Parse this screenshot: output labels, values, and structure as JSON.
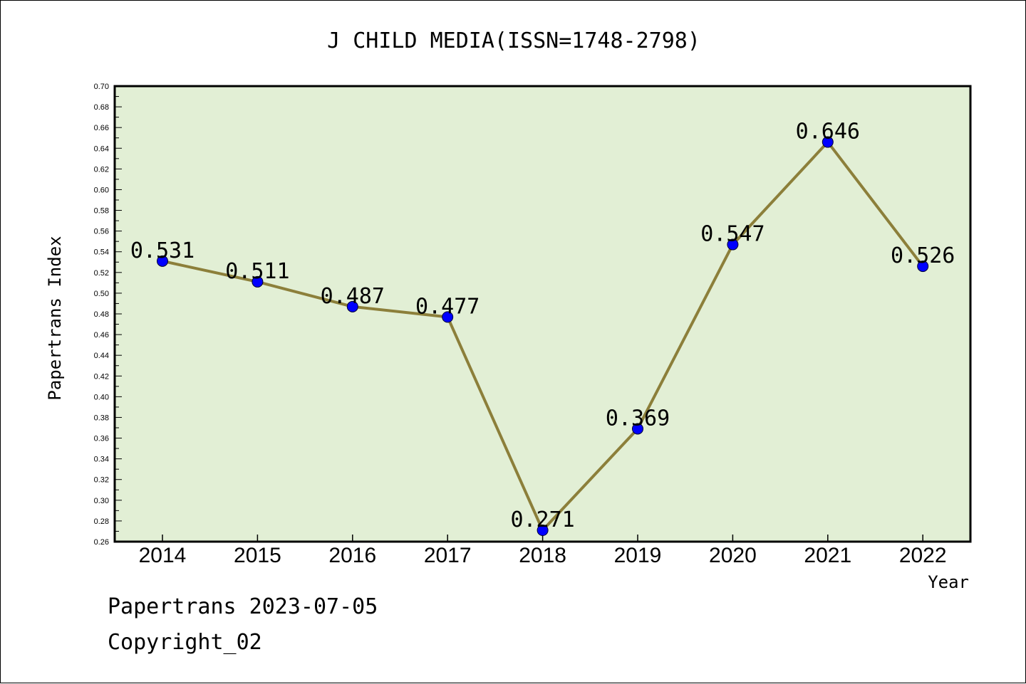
{
  "chart_data": {
    "type": "line",
    "title": "J CHILD MEDIA(ISSN=1748-2798)",
    "xlabel": "Year",
    "ylabel": "Papertrans Index",
    "categories": [
      "2014",
      "2015",
      "2016",
      "2017",
      "2018",
      "2019",
      "2020",
      "2021",
      "2022"
    ],
    "series": [
      {
        "values": [
          0.531,
          0.511,
          0.487,
          0.477,
          0.271,
          0.369,
          0.547,
          0.646,
          0.526
        ],
        "data_labels": [
          "0.531",
          "0.511",
          "0.487",
          "0.477",
          "0.271",
          "0.369",
          "0.547",
          "0.646",
          "0.526"
        ]
      }
    ],
    "ylim": [
      0.26,
      0.7
    ],
    "yticks": [
      "0.26",
      "0.28",
      "0.30",
      "0.32",
      "0.34",
      "0.36",
      "0.38",
      "0.40",
      "0.42",
      "0.44",
      "0.46",
      "0.48",
      "0.50",
      "0.52",
      "0.54",
      "0.56",
      "0.58",
      "0.60",
      "0.62",
      "0.64",
      "0.66",
      "0.68",
      "0.70"
    ],
    "grid": false,
    "legend": "none",
    "colors": {
      "plot_background": "#e2efd5",
      "line": "#8c7f3a",
      "marker": "#0000ff",
      "axis": "#000000"
    }
  },
  "footer": {
    "date_text": "Papertrans 2023-07-05",
    "copyright_text": "Copyright_02"
  }
}
